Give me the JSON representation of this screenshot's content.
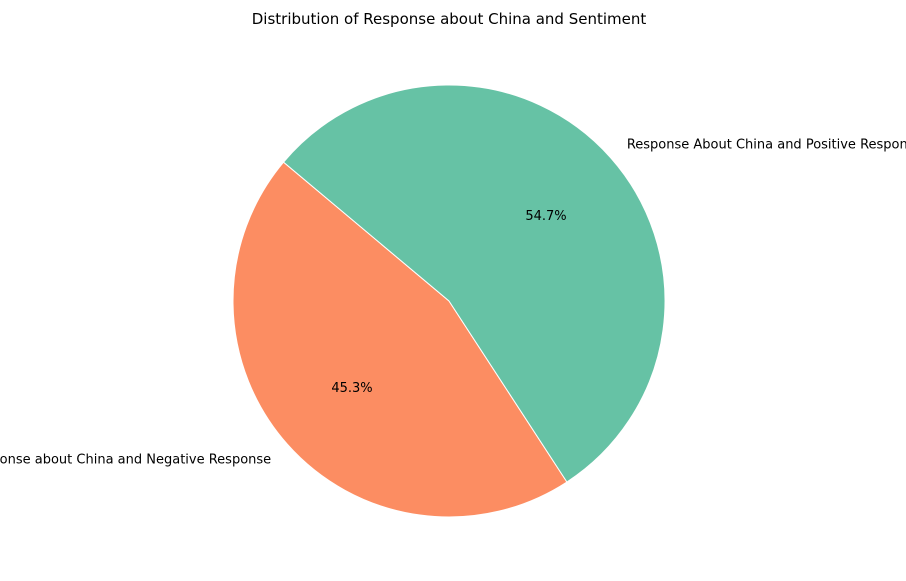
{
  "chart_data": {
    "type": "pie",
    "title": "Distribution of Response about China and Sentiment",
    "slices": [
      {
        "label": "Response about China and Negative Response",
        "value": 45.3,
        "pct_label": "45.3%",
        "color": "#fc8d62"
      },
      {
        "label": "Response About China and Positive Response",
        "value": 54.7,
        "pct_label": "54.7%",
        "color": "#66c2a5"
      }
    ]
  }
}
